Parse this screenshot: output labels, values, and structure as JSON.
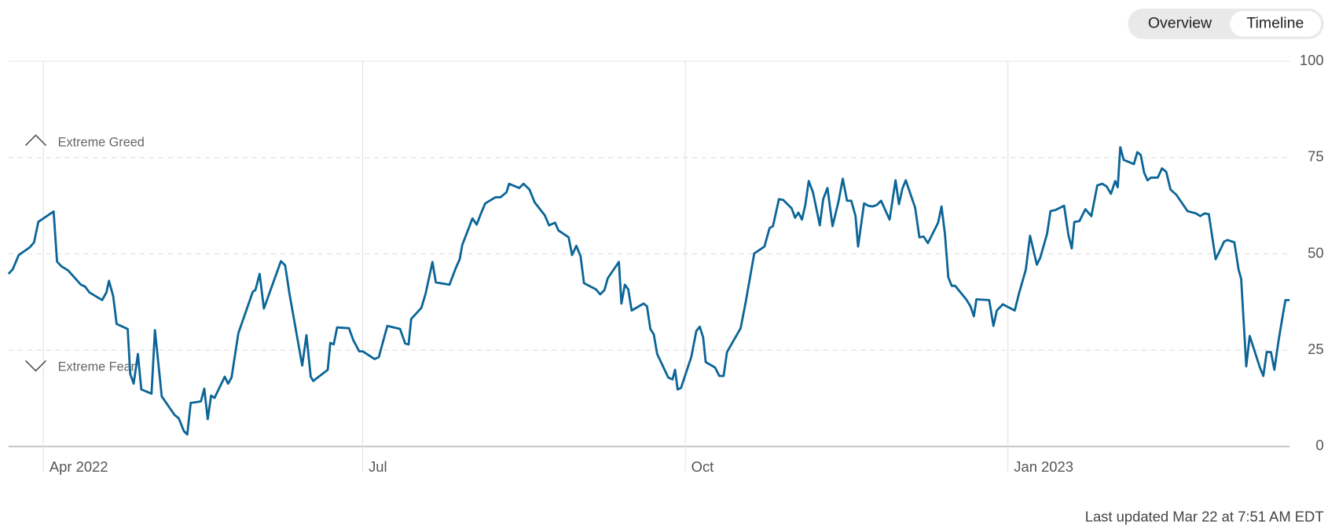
{
  "controls": {
    "options": [
      "Overview",
      "Timeline"
    ]
  },
  "chart_data": {
    "type": "line",
    "annotations": [
      "Extreme Greed",
      "Extreme Fear"
    ],
    "footnote": "Last updated Mar 22 at 7:51 AM EDT",
    "color": "#0b6597",
    "grid": true,
    "xlim": [
      0,
      1505
    ],
    "ylim": [
      0,
      100
    ],
    "yticks": [
      0,
      25,
      50,
      75,
      100
    ],
    "xticks": [
      {
        "value": 41,
        "label": "Apr 2022"
      },
      {
        "value": 416,
        "label": "Jul"
      },
      {
        "value": 795,
        "label": "Oct"
      },
      {
        "value": 1174,
        "label": "Jan 2023"
      }
    ],
    "x": [
      0,
      5,
      12,
      25,
      30,
      35,
      53,
      57,
      62,
      70,
      85,
      90,
      95,
      110,
      115,
      118,
      123,
      127,
      140,
      143,
      147,
      152,
      156,
      168,
      172,
      180,
      195,
      200,
      206,
      210,
      214,
      226,
      230,
      234,
      238,
      242,
      254,
      258,
      262,
      270,
      287,
      290,
      295,
      300,
      320,
      325,
      330,
      345,
      350,
      355,
      358,
      375,
      378,
      382,
      386,
      400,
      405,
      412,
      416,
      430,
      435,
      445,
      460,
      466,
      470,
      473,
      485,
      490,
      498,
      502,
      518,
      525,
      530,
      533,
      545,
      550,
      555,
      560,
      572,
      578,
      585,
      588,
      600,
      605,
      612,
      618,
      630,
      635,
      642,
      646,
      658,
      662,
      667,
      672,
      676,
      690,
      695,
      700,
      704,
      717,
      720,
      724,
      728,
      732,
      746,
      750,
      754,
      758,
      762,
      775,
      780,
      783,
      786,
      790,
      802,
      808,
      812,
      816,
      819,
      830,
      835,
      840,
      844,
      860,
      866,
      876,
      888,
      894,
      898,
      905,
      910,
      920,
      924,
      928,
      932,
      936,
      940,
      945,
      950,
      953,
      957,
      962,
      968,
      975,
      980,
      985,
      990,
      995,
      998,
      1005,
      1010,
      1015,
      1020,
      1025,
      1035,
      1042,
      1046,
      1050,
      1054,
      1065,
      1070,
      1075,
      1080,
      1085,
      1092,
      1096,
      1100,
      1104,
      1108,
      1112,
      1125,
      1130,
      1134,
      1137,
      1152,
      1157,
      1161,
      1168,
      1182,
      1187,
      1195,
      1200,
      1208,
      1212,
      1220,
      1224,
      1230,
      1240,
      1245,
      1249,
      1252,
      1258,
      1265,
      1272,
      1279,
      1285,
      1290,
      1295,
      1300,
      1303,
      1306,
      1310,
      1322,
      1326,
      1330,
      1334,
      1338,
      1342,
      1350,
      1355,
      1360,
      1365,
      1372,
      1385,
      1395,
      1400,
      1405,
      1410,
      1418,
      1428,
      1432,
      1440,
      1445,
      1448,
      1454,
      1458,
      1470,
      1474,
      1478,
      1483,
      1487,
      1492,
      1497,
      1500,
      1505
    ],
    "values": [
      44.8,
      46,
      49.7,
      51.7,
      53,
      58.3,
      61,
      48,
      46.8,
      45.7,
      42,
      41.5,
      40,
      38,
      40,
      43,
      39,
      31.8,
      30.5,
      18.8,
      16.3,
      24,
      14.8,
      13.7,
      30.2,
      13,
      8.2,
      7.3,
      4,
      3.1,
      11.3,
      11.7,
      15,
      7.1,
      13.2,
      12.6,
      18.1,
      16.3,
      17.9,
      29.4,
      40.2,
      40.6,
      44.8,
      35.8,
      48.1,
      47,
      39.7,
      21,
      28.9,
      18.1,
      17,
      19.9,
      26.9,
      26.5,
      30.9,
      30.7,
      27.6,
      24.7,
      24.7,
      22.7,
      23.2,
      31.3,
      30.5,
      26.7,
      26.5,
      33.1,
      36,
      39.7,
      47.9,
      42.6,
      42,
      46.1,
      48.6,
      52.3,
      59.2,
      57.6,
      60.5,
      63.1,
      64.7,
      64.7,
      66,
      68.2,
      67.1,
      68.2,
      66.7,
      63.4,
      60,
      57.4,
      58.1,
      56.1,
      54.3,
      49.7,
      52.1,
      49.4,
      42.4,
      40.8,
      39.5,
      40.6,
      43.7,
      47.9,
      37.1,
      42,
      40.8,
      35.3,
      37.1,
      36.4,
      30.5,
      29.1,
      24,
      17.9,
      17.4,
      19.9,
      14.8,
      15.2,
      23.2,
      30,
      31.1,
      28.3,
      21.9,
      20.5,
      18.3,
      18.3,
      24.5,
      30.7,
      37.5,
      50.1,
      51.9,
      56.7,
      57.2,
      64.2,
      64,
      61.8,
      59.4,
      60.7,
      58.9,
      62.7,
      68.9,
      66,
      60.7,
      57.4,
      64.2,
      67.1,
      57.2,
      63.6,
      69.5,
      63.8,
      63.8,
      59.8,
      51.9,
      63.1,
      62.5,
      62.3,
      62.7,
      63.8,
      58.9,
      69.1,
      62.9,
      66.9,
      69.1,
      62,
      54.3,
      54.5,
      52.8,
      55,
      58.1,
      62.3,
      55.2,
      43.9,
      41.7,
      41.7,
      38.2,
      36.4,
      33.8,
      38.2,
      38,
      31.3,
      35.3,
      36.9,
      35.3,
      39.7,
      45.9,
      54.7,
      47.2,
      49,
      55.2,
      61.1,
      61.4,
      62.5,
      55,
      51.4,
      58.3,
      58.5,
      61.6,
      59.8,
      67.8,
      68.2,
      67.5,
      65.6,
      68.9,
      67.3,
      77.7,
      74.4,
      73.3,
      76.4,
      75.7,
      71.1,
      69.1,
      69.8,
      69.8,
      72.2,
      71.3,
      66.7,
      65.3,
      61.1,
      60.5,
      59.8,
      60.5,
      60.3,
      48.6,
      53.2,
      53.6,
      53,
      45.9,
      43.5,
      20.8,
      28.7,
      20.5,
      18.3,
      24.5,
      24.5,
      19.9,
      27.6,
      34.2,
      38,
      38
    ]
  }
}
